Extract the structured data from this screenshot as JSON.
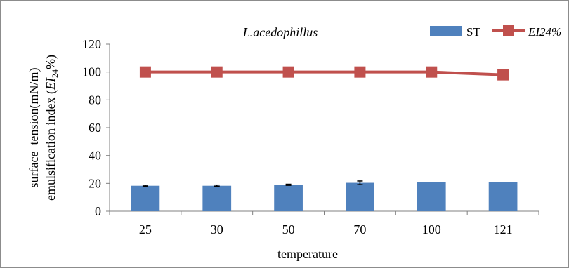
{
  "chart_data": {
    "type": "bar",
    "title": "L.acedophillus",
    "xlabel": "temperature",
    "ylabel_line1": "surface  tension(mN/m)",
    "ylabel_line2_prefix": "emulsification index (",
    "ylabel_line2_italic": "EI",
    "ylabel_line2_sub": "24",
    "ylabel_line2_suffix": "%)",
    "categories": [
      "25",
      "30",
      "50",
      "70",
      "100",
      "121"
    ],
    "ylim": [
      0,
      120
    ],
    "yticks": [
      0,
      20,
      40,
      60,
      80,
      100,
      120
    ],
    "grid": false,
    "legend_position": "top-right",
    "series": [
      {
        "name": "ST",
        "type": "bar",
        "color": "#4f81bd",
        "values": [
          18.3,
          18.3,
          19.0,
          20.4,
          21.0,
          21.0
        ],
        "errors": [
          0.4,
          0.5,
          0.4,
          1.3,
          0,
          0
        ]
      },
      {
        "name": "EI24%",
        "type": "line",
        "color": "#c0504d",
        "values": [
          100,
          100,
          100,
          100,
          100,
          98
        ]
      }
    ]
  }
}
